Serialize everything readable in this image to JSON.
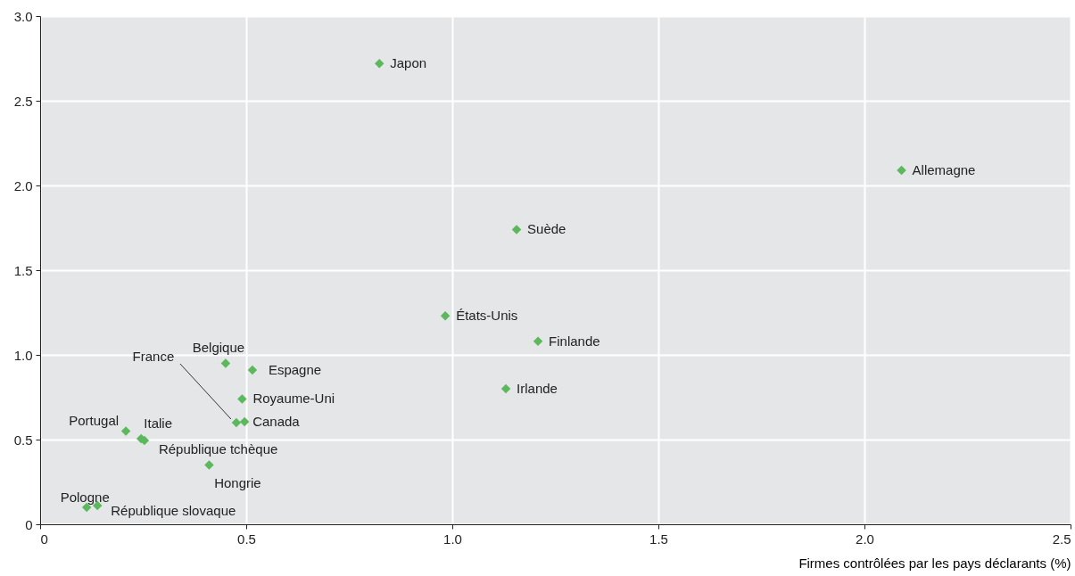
{
  "chart_data": {
    "type": "scatter",
    "xlabel": "Firmes contrôlées par les pays déclarants (%)",
    "xlim": [
      0,
      2.5
    ],
    "ylim": [
      0,
      3.0
    ],
    "xticks": [
      0,
      0.5,
      {
        "value": 1,
        "label": "1.0"
      },
      1.5,
      {
        "value": 2,
        "label": "2.0"
      },
      2.5
    ],
    "yticks": [
      0,
      0.5,
      {
        "value": 1,
        "label": "1.0"
      },
      1.5,
      {
        "value": 2,
        "label": "2.0"
      },
      2.5,
      {
        "value": 3,
        "label": "3.0"
      }
    ],
    "grid": true,
    "marker": "diamond",
    "series": [
      {
        "name": "Japon",
        "color": "#5cb85c",
        "x": [
          0.823
        ],
        "values": [
          2.72
        ]
      },
      {
        "name": "Allemagne",
        "color": "#5cb85c",
        "x": [
          2.09
        ],
        "values": [
          2.09
        ]
      },
      {
        "name": "Suède",
        "color": "#5cb85c",
        "x": [
          1.156
        ],
        "values": [
          1.74
        ]
      },
      {
        "name": "États-Unis",
        "color": "#5cb85c",
        "x": [
          0.983
        ],
        "values": [
          1.23
        ]
      },
      {
        "name": "Finlande",
        "color": "#5cb85c",
        "x": [
          1.208
        ],
        "values": [
          1.08
        ]
      },
      {
        "name": "Irlande",
        "color": "#5cb85c",
        "x": [
          1.13
        ],
        "values": [
          0.8
        ]
      },
      {
        "name": "Belgique",
        "color": "#5cb85c",
        "x": [
          0.45
        ],
        "values": [
          0.95
        ]
      },
      {
        "name": "Espagne",
        "color": "#5cb85c",
        "x": [
          0.515
        ],
        "values": [
          0.91
        ]
      },
      {
        "name": "Royaume-Uni",
        "color": "#5cb85c",
        "x": [
          0.49
        ],
        "values": [
          0.74
        ]
      },
      {
        "name": "France",
        "color": "#5cb85c",
        "x": [
          0.476
        ],
        "values": [
          0.6
        ]
      },
      {
        "name": "Canada",
        "color": "#5cb85c",
        "x": [
          0.496
        ],
        "values": [
          0.605
        ]
      },
      {
        "name": "Portugal",
        "color": "#5cb85c",
        "x": [
          0.208
        ],
        "values": [
          0.55
        ]
      },
      {
        "name": "Italie",
        "color": "#5cb85c",
        "x": [
          0.245
        ],
        "values": [
          0.505
        ]
      },
      {
        "name": "République tchèque",
        "color": "#5cb85c",
        "x": [
          0.253
        ],
        "values": [
          0.495
        ]
      },
      {
        "name": "Hongrie",
        "color": "#5cb85c",
        "x": [
          0.41
        ],
        "values": [
          0.35
        ]
      },
      {
        "name": "Pologne",
        "color": "#5cb85c",
        "x": [
          0.113
        ],
        "values": [
          0.1
        ]
      },
      {
        "name": "République slovaque",
        "color": "#5cb85c",
        "x": [
          0.139
        ],
        "values": [
          0.11
        ]
      }
    ]
  }
}
